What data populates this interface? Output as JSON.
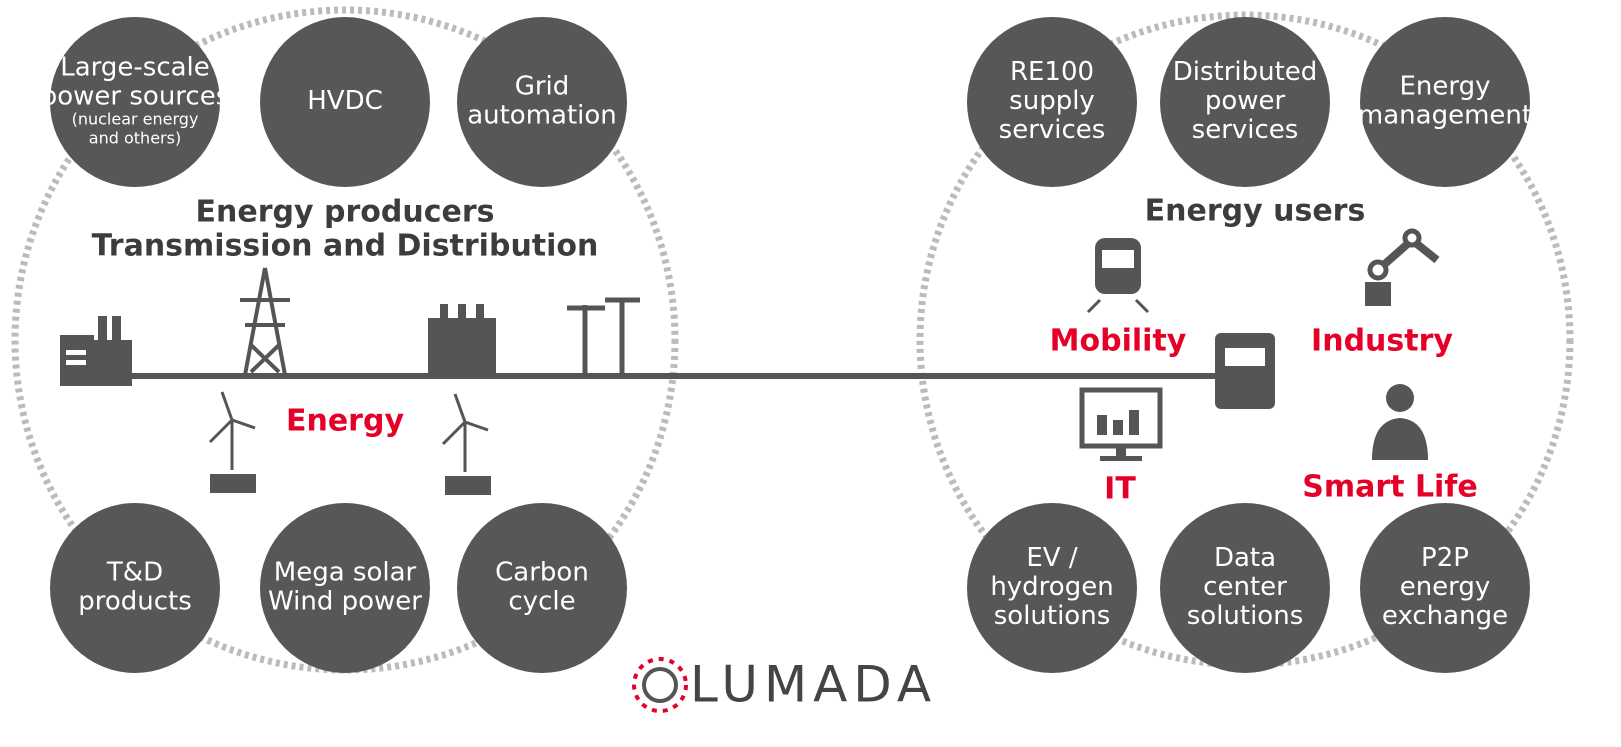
{
  "left": {
    "title": [
      "Energy producers",
      "Transmission and Distribution"
    ],
    "label": "Energy",
    "circles": [
      {
        "lines": [
          "Large-scale",
          "power sources"
        ],
        "note": [
          "(nuclear energy",
          "and others)"
        ]
      },
      {
        "lines": [
          "HVDC"
        ]
      },
      {
        "lines": [
          "Grid",
          "automation"
        ]
      },
      {
        "lines": [
          "T&D",
          "products"
        ]
      },
      {
        "lines": [
          "Mega solar",
          "Wind power"
        ]
      },
      {
        "lines": [
          "Carbon",
          "cycle"
        ]
      }
    ]
  },
  "right": {
    "title": "Energy users",
    "segments": [
      "Mobility",
      "Industry",
      "IT",
      "Smart Life"
    ],
    "circles": [
      {
        "lines": [
          "RE100",
          "supply",
          "services"
        ]
      },
      {
        "lines": [
          "Distributed",
          "power",
          "services"
        ]
      },
      {
        "lines": [
          "Energy",
          "management"
        ]
      },
      {
        "lines": [
          "EV /",
          "hydrogen",
          "solutions"
        ]
      },
      {
        "lines": [
          "Data",
          "center",
          "solutions"
        ]
      },
      {
        "lines": [
          "P2P",
          "energy",
          "exchange"
        ]
      }
    ]
  },
  "logo": "LUMADA"
}
